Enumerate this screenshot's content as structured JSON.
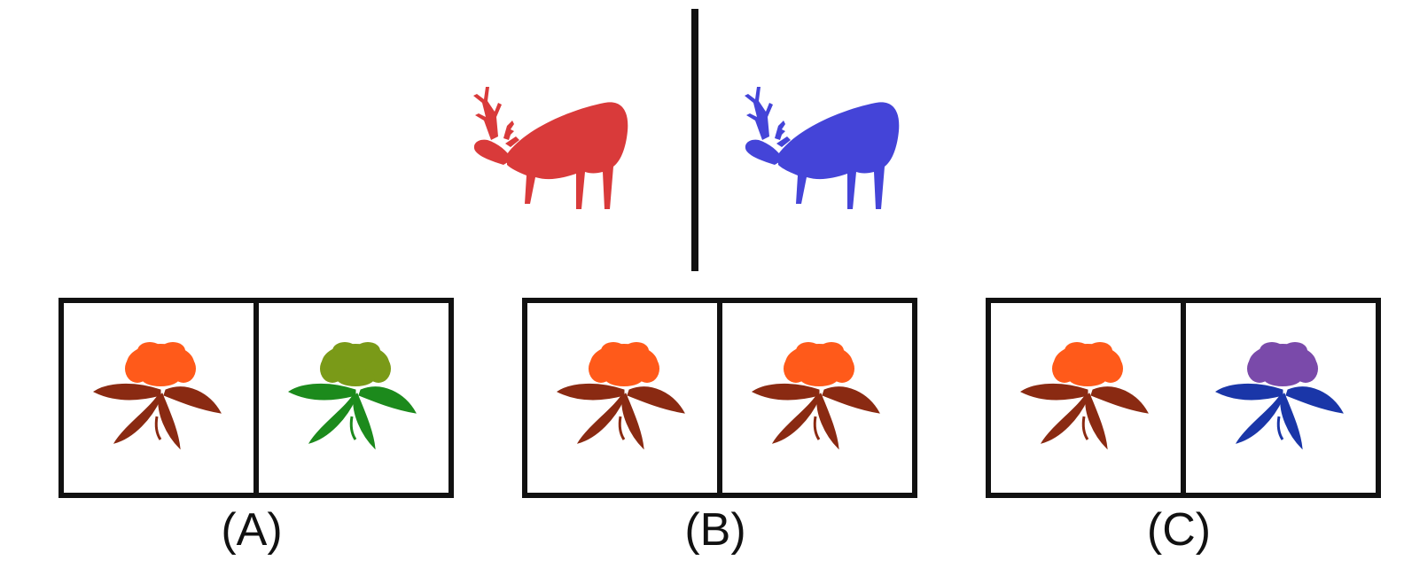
{
  "prompt": {
    "source_color": "#d93a3a",
    "target_color": "#4444d8",
    "subject_icon": "deer-icon"
  },
  "options": [
    {
      "label": "(A)",
      "left_petal": "#ff5a1a",
      "left_leaf": "#8a2a12",
      "right_petal": "#7a9a18",
      "right_leaf": "#1c8a1c",
      "icon": "flower-icon"
    },
    {
      "label": "(B)",
      "left_petal": "#ff5a1a",
      "left_leaf": "#8a2a12",
      "right_petal": "#ff5a1a",
      "right_leaf": "#8a2a12",
      "icon": "flower-icon"
    },
    {
      "label": "(C)",
      "left_petal": "#ff5a1a",
      "left_leaf": "#8a2a12",
      "right_petal": "#7a4aaa",
      "right_leaf": "#1a36a8",
      "icon": "flower-icon"
    }
  ]
}
